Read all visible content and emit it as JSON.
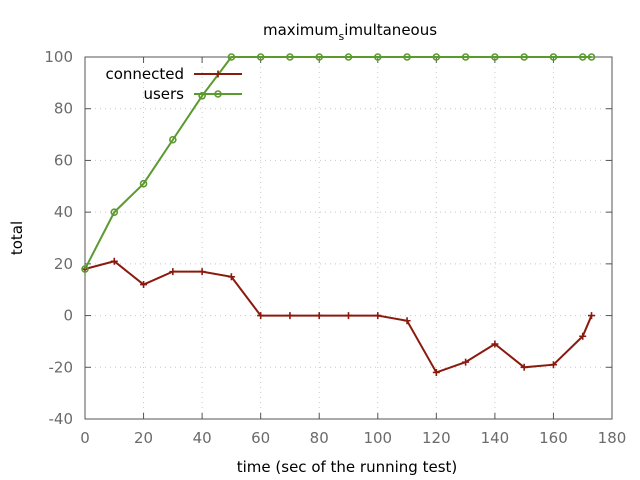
{
  "chart_data": {
    "type": "line",
    "title_main": "maximum",
    "title_sub": "s",
    "title_rest": "imultaneous",
    "xlabel": "time (sec of the running test)",
    "ylabel": "total",
    "xlim": [
      0,
      180
    ],
    "ylim": [
      -40,
      100
    ],
    "xticks": [
      0,
      20,
      40,
      60,
      80,
      100,
      120,
      140,
      160,
      180
    ],
    "yticks": [
      -40,
      -20,
      0,
      20,
      40,
      60,
      80,
      100
    ],
    "grid": true,
    "legend_position": "top-left",
    "series": [
      {
        "name": "connected",
        "color": "#8b1a0e",
        "marker": "plus",
        "x": [
          0,
          10,
          20,
          30,
          40,
          50,
          60,
          70,
          80,
          90,
          100,
          110,
          120,
          130,
          140,
          150,
          160,
          170,
          173
        ],
        "y": [
          18,
          21,
          12,
          17,
          17,
          15,
          0,
          0,
          0,
          0,
          0,
          -2,
          -22,
          -18,
          -11,
          -20,
          -19,
          -8,
          0
        ]
      },
      {
        "name": "users",
        "color": "#5a9a2f",
        "marker": "circle",
        "x": [
          0,
          10,
          20,
          30,
          40,
          50,
          60,
          70,
          80,
          90,
          100,
          110,
          120,
          130,
          140,
          150,
          160,
          170,
          173
        ],
        "y": [
          18,
          40,
          51,
          68,
          85,
          100,
          100,
          100,
          100,
          100,
          100,
          100,
          100,
          100,
          100,
          100,
          100,
          100,
          100
        ]
      }
    ]
  }
}
